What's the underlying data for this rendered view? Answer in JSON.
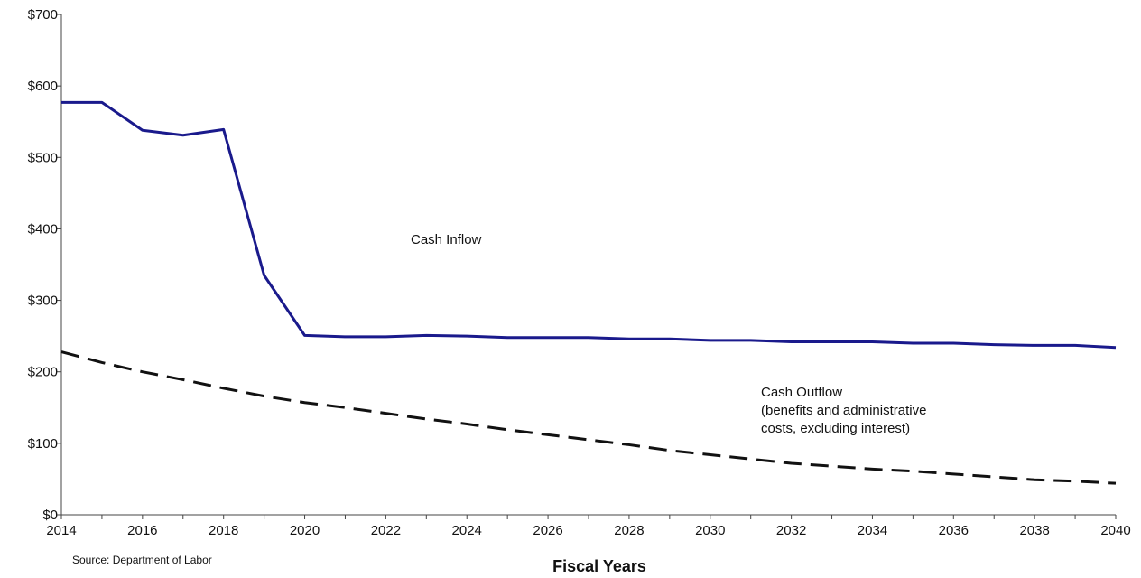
{
  "chart_data": {
    "type": "line",
    "xlabel": "Fiscal Years",
    "ylabel": "",
    "xlim": [
      2014,
      2040
    ],
    "ylim": [
      0,
      700
    ],
    "x_ticks": [
      "2014",
      "2016",
      "2018",
      "2020",
      "2022",
      "2024",
      "2026",
      "2028",
      "2030",
      "2032",
      "2034",
      "2036",
      "2038",
      "2040"
    ],
    "y_ticks": [
      "$0",
      "$100",
      "$200",
      "$300",
      "$400",
      "$500",
      "$600",
      "$700"
    ],
    "grid": false,
    "x": [
      2014,
      2015,
      2016,
      2017,
      2018,
      2019,
      2020,
      2021,
      2022,
      2023,
      2024,
      2025,
      2026,
      2027,
      2028,
      2029,
      2030,
      2031,
      2032,
      2033,
      2034,
      2035,
      2036,
      2037,
      2038,
      2039,
      2040
    ],
    "series": [
      {
        "name": "Cash Inflow",
        "color": "#1a1a8c",
        "style": "solid",
        "values": [
          577,
          577,
          538,
          531,
          539,
          335,
          251,
          249,
          249,
          251,
          250,
          248,
          248,
          248,
          246,
          246,
          244,
          244,
          242,
          242,
          242,
          240,
          240,
          238,
          237,
          237,
          234
        ]
      },
      {
        "name": "Cash Outflow",
        "color": "#111111",
        "style": "dashed",
        "values": [
          228,
          213,
          200,
          189,
          177,
          166,
          157,
          150,
          142,
          134,
          127,
          119,
          112,
          105,
          98,
          90,
          84,
          78,
          72,
          68,
          64,
          61,
          57,
          53,
          49,
          47,
          44
        ]
      }
    ],
    "annotations": [
      {
        "text": "Cash Inflow"
      },
      {
        "text": "Cash Outflow"
      },
      {
        "text": "(benefits and administrative"
      },
      {
        "text": "costs, excluding interest)"
      }
    ],
    "source": "Source:  Department  of Labor"
  }
}
